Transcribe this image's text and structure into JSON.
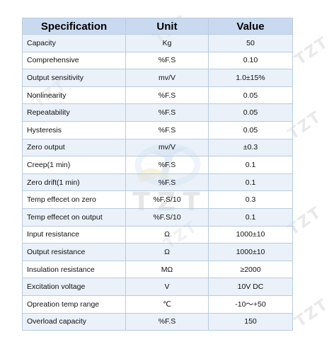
{
  "headers": {
    "specification": "Specification",
    "unit": "Unit",
    "value": "Value"
  },
  "rows": [
    {
      "name": "Capacity",
      "unit": "Kg",
      "value": "50"
    },
    {
      "name": "Comprehensive",
      "unit": "%F.S",
      "value": "0.10"
    },
    {
      "name": "Output sensitivity",
      "unit": "mv/V",
      "value": "1.0±15%"
    },
    {
      "name": "Nonlinearity",
      "unit": "%F.S",
      "value": "0.05"
    },
    {
      "name": "Repeatability",
      "unit": "%F.S",
      "value": "0.05"
    },
    {
      "name": "Hysteresis",
      "unit": "%F.S",
      "value": "0.05"
    },
    {
      "name": "Zero output",
      "unit": "mv/V",
      "value": "±0.3"
    },
    {
      "name": "Creep(1 min)",
      "unit": "%F.S",
      "value": "0.1"
    },
    {
      "name": "Zero drift(1 min)",
      "unit": "%F.S",
      "value": "0.1"
    },
    {
      "name": "Temp effecet on zero",
      "unit": "%F.S/10",
      "value": "0.3"
    },
    {
      "name": "Temp effecet on output",
      "unit": "%F.S/10",
      "value": "0.1"
    },
    {
      "name": "Input resistance",
      "unit": "Ω",
      "value": "1000±10"
    },
    {
      "name": "Output resistance",
      "unit": "Ω",
      "value": "1000±10"
    },
    {
      "name": "Insulation resistance",
      "unit": "MΩ",
      "value": "≥2000"
    },
    {
      "name": "Excitation voltage",
      "unit": "V",
      "value": "10V DC"
    },
    {
      "name": "Opreation temp range",
      "unit": "℃",
      "value": "-10～+50"
    },
    {
      "name": "Overload capacity",
      "unit": "%F.S",
      "value": "150"
    }
  ],
  "watermark": {
    "text": "TZT"
  },
  "logo": {
    "text": "TZT"
  },
  "colors": {
    "header_bg": "#c9daf0",
    "row_alt_bg": "#dfeaf6",
    "border": "#b8cbe0"
  }
}
